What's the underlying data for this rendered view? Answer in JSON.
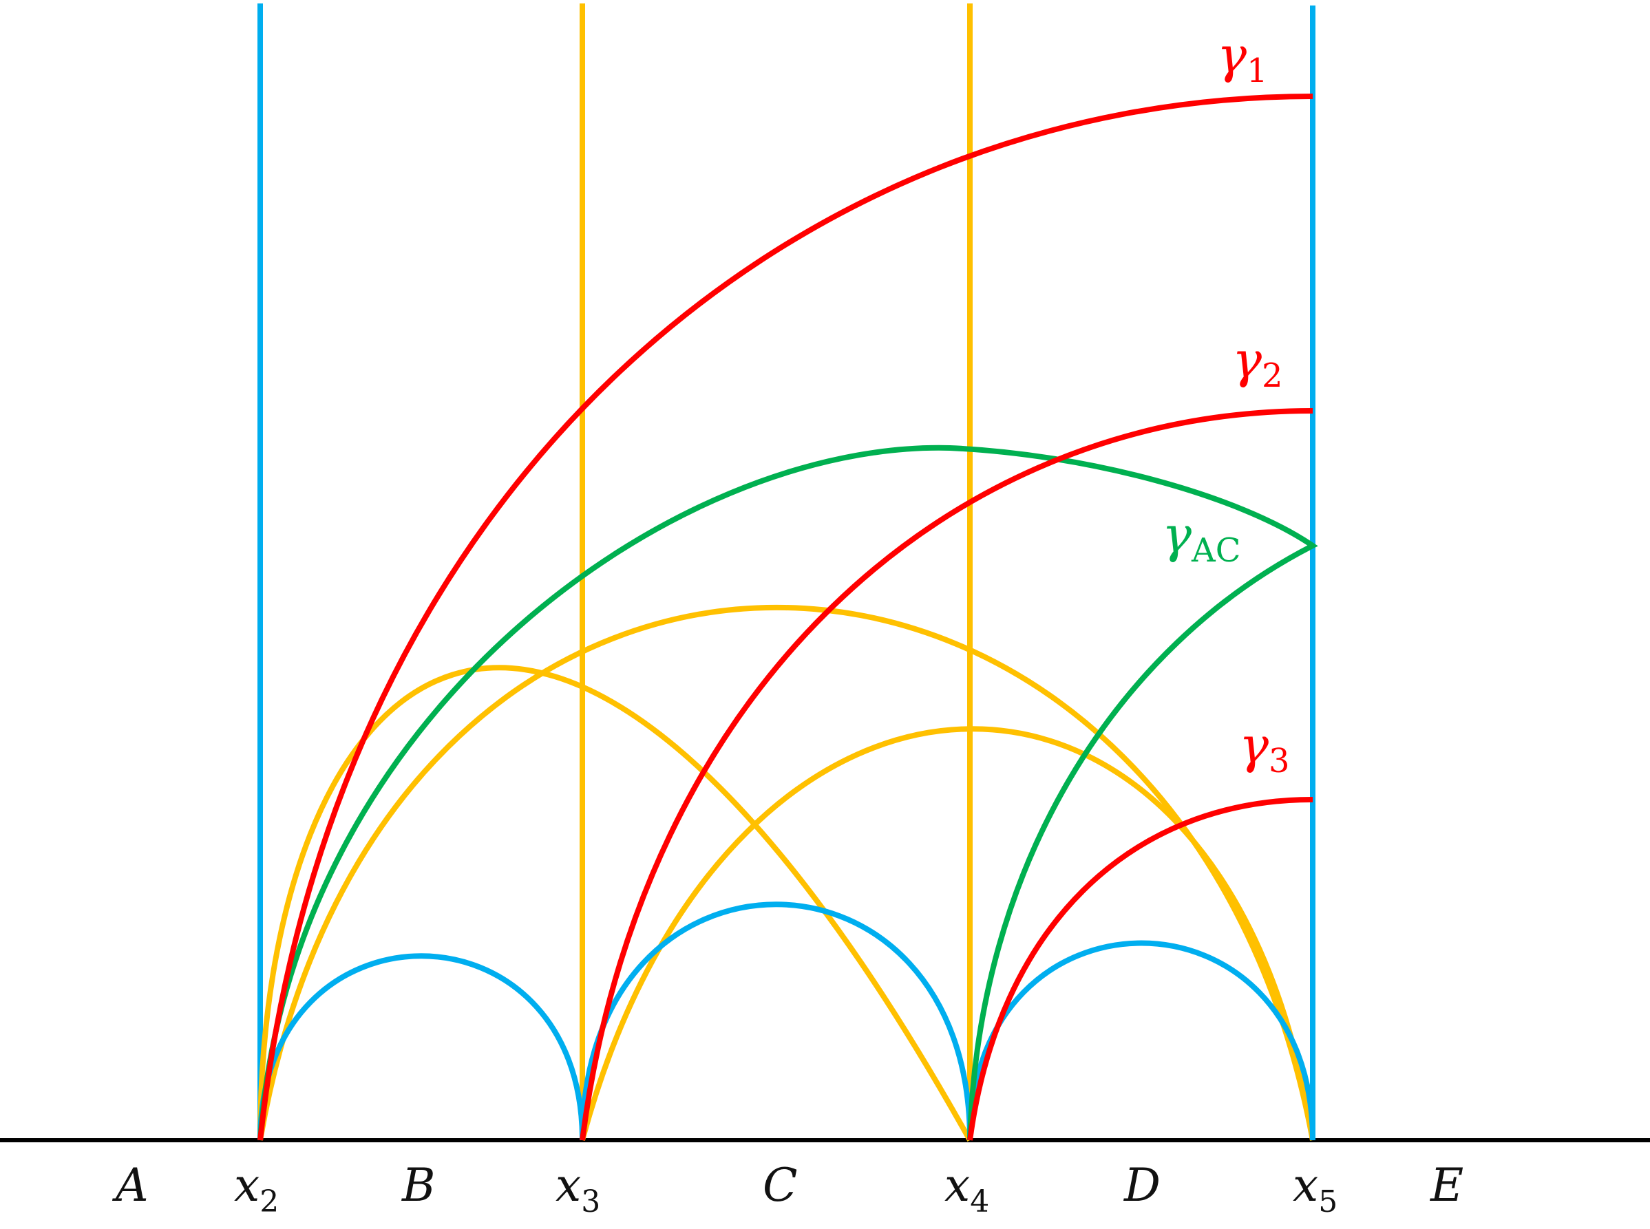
{
  "colors": {
    "axis": "#000000",
    "blue": "#00aeef",
    "gold": "#ffc000",
    "red": "#ff0000",
    "green": "#00b050",
    "text": "#111111"
  },
  "axis_labels": {
    "A": "A",
    "x2": {
      "base": "x",
      "sub": "2"
    },
    "B": "B",
    "x3": {
      "base": "x",
      "sub": "3"
    },
    "C": "C",
    "x4": {
      "base": "x",
      "sub": "4"
    },
    "D": "D",
    "x5": {
      "base": "x",
      "sub": "5"
    },
    "E": "E"
  },
  "curve_labels": {
    "gamma1": {
      "base": "γ",
      "sub": "1"
    },
    "gamma2": {
      "base": "γ",
      "sub": "2"
    },
    "gammaAC": {
      "base": "γ",
      "sub": "AC"
    },
    "gamma3": {
      "base": "γ",
      "sub": "3"
    }
  }
}
